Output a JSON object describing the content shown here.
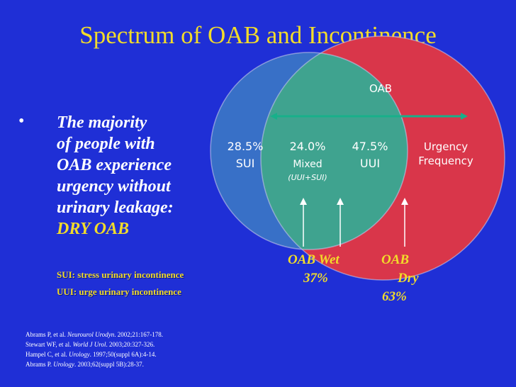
{
  "title": "Spectrum of OAB and Incontinence",
  "bullet": {
    "marker": "•",
    "lines": [
      "The majority",
      "of people with",
      "OAB experience",
      "urgency without",
      "urinary leakage:"
    ],
    "highlight": "DRY OAB"
  },
  "definitions": {
    "sui": "SUI: stress urinary incontinence",
    "uui": "UUI: urge urinary incontinence"
  },
  "references": [
    {
      "pre": "Abrams P, et al. ",
      "journal": "Neurourol Urodyn",
      "post": ". 2002;21:167-178."
    },
    {
      "pre": "Stewart WF, et al. ",
      "journal": "World J Urol",
      "post": ". 2003;20:327-326."
    },
    {
      "pre": "Hampel C, et al. ",
      "journal": "Urology",
      "post": ". 1997;50(suppl 6A):4-14."
    },
    {
      "pre": "Abrams P. ",
      "journal": "Urology",
      "post": ". 2003;62(suppl 5B):28-37."
    }
  ],
  "diagram": {
    "oab_label": "OAB",
    "sui_pct": "28.5%",
    "sui_label": "SUI",
    "mixed_pct": "24.0%",
    "mixed_label": "Mixed",
    "mixed_sub": "(UUI+SUI)",
    "uui_pct": "47.5%",
    "uui_label": "UUI",
    "urgency_label": "Urgency",
    "frequency_label": "Frequency"
  },
  "callouts": {
    "wet_title": "OAB Wet",
    "wet_pct": "37%",
    "dry_title": "OAB",
    "dry_word": "Dry",
    "dry_pct": "63%"
  },
  "colors": {
    "background": "#1f2fd6",
    "title": "#f2dc2a",
    "oab_circle": "#d9364a",
    "sui_circle": "#3a74c6",
    "mixed_region": "#3fa38f",
    "arrow": "#18b08a"
  }
}
